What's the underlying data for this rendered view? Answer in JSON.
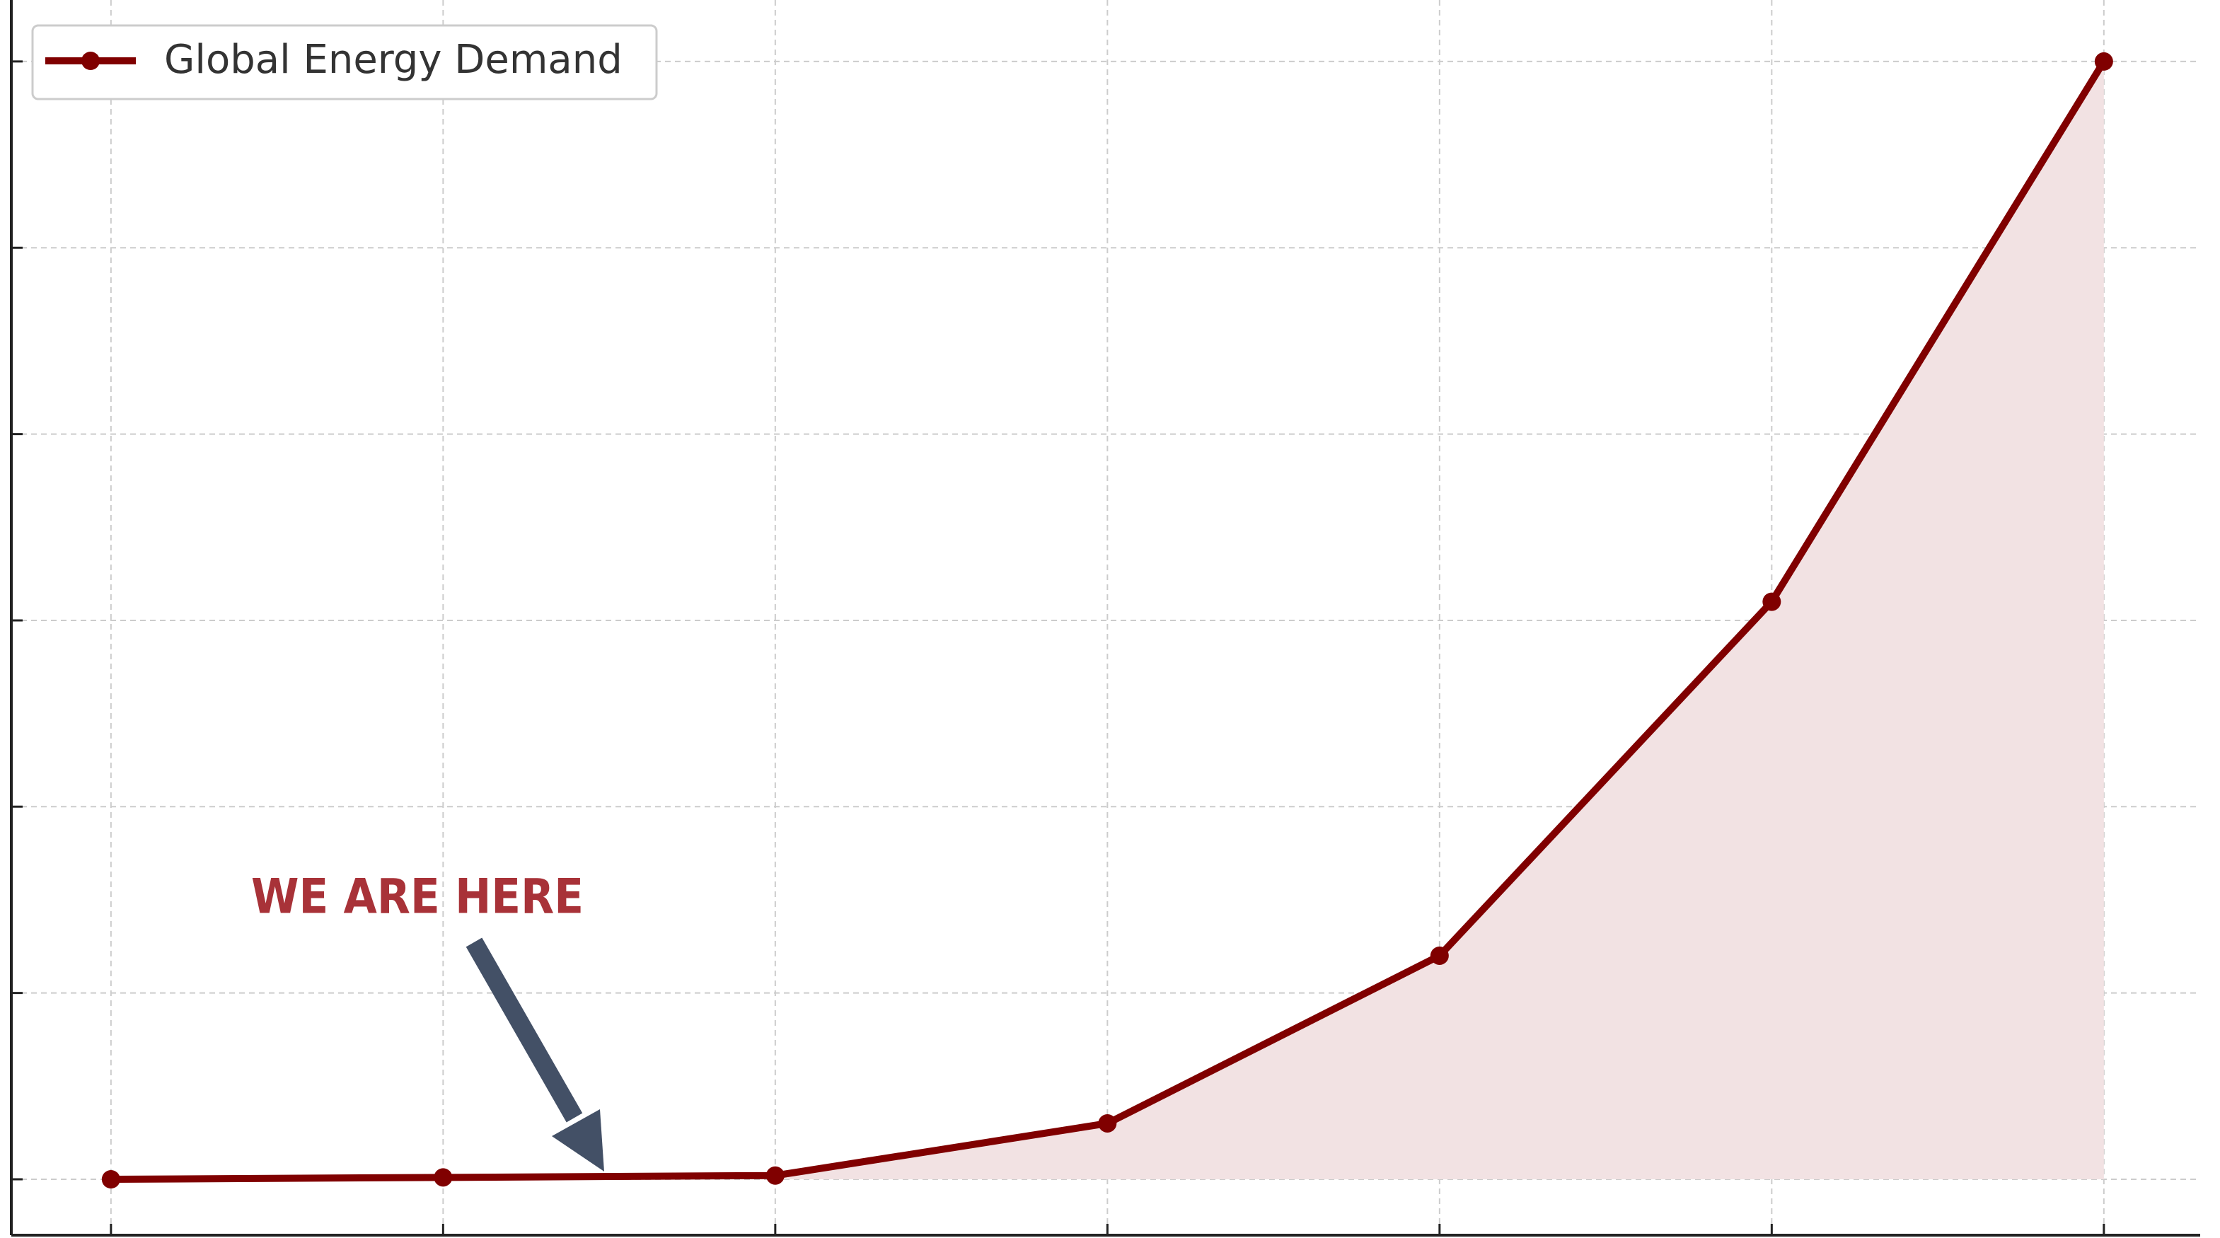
{
  "chart_data": {
    "type": "line",
    "x": [
      0,
      1,
      2,
      3,
      4,
      5,
      6
    ],
    "series": [
      {
        "name": "Global Energy Demand",
        "color": "#800000",
        "fill": "#f2e2e3",
        "values": [
          0,
          0.01,
          0.02,
          0.3,
          1.2,
          3.1,
          6.0
        ]
      }
    ],
    "xlim": [
      -0.3,
      6.29
    ],
    "xticks": [
      0,
      1,
      2,
      3,
      4,
      5,
      6
    ],
    "ylim": [
      -0.3,
      6.33
    ],
    "yticks": [
      0,
      1,
      2,
      3,
      4,
      5,
      6
    ],
    "grid": true,
    "legend": "upper left",
    "annotation": {
      "text": "WE ARE HERE",
      "color": "#a83238",
      "arrow_color": "#435066"
    }
  }
}
